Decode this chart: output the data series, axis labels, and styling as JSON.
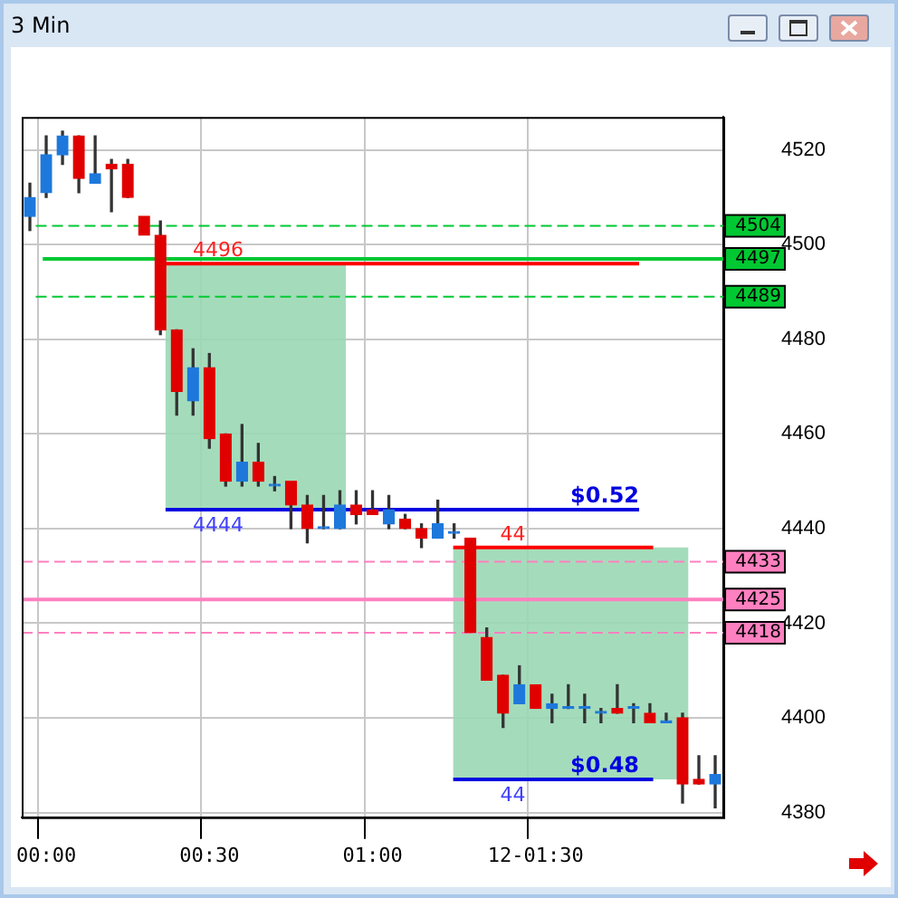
{
  "chart_data": {
    "type": "candlestick",
    "title": "3 Min",
    "categories": [
      null,
      "00:00",
      null,
      null,
      null,
      null,
      null,
      null,
      null,
      null,
      null,
      "00:30",
      null,
      null,
      null,
      null,
      null,
      null,
      null,
      null,
      null,
      "01:00",
      null,
      null,
      null,
      null,
      null,
      null,
      null,
      null,
      null,
      "12-01:30",
      null,
      null,
      null,
      null,
      null,
      null,
      null,
      null,
      null,
      null,
      null
    ],
    "ohlc": [
      [
        4506,
        4513,
        4503,
        4510
      ],
      [
        4511,
        4523,
        4510,
        4519
      ],
      [
        4519,
        4524,
        4517,
        4523
      ],
      [
        4523,
        4523,
        4511,
        4514
      ],
      [
        4513,
        4523,
        4513,
        4515
      ],
      [
        4517,
        4518,
        4507,
        4516
      ],
      [
        4517,
        4518,
        4510,
        4510
      ],
      [
        4506,
        4506,
        4502,
        4502
      ],
      [
        4502,
        4505,
        4481,
        4482
      ],
      [
        4482,
        4482,
        4464,
        4469
      ],
      [
        4467,
        4478,
        4464,
        4474
      ],
      [
        4474,
        4477,
        4457,
        4459
      ],
      [
        4460,
        4460,
        4449,
        4450
      ],
      [
        4450,
        4462,
        4449,
        4454
      ],
      [
        4454,
        4458,
        4449,
        4450
      ],
      [
        4449,
        4451,
        4448,
        4449
      ],
      [
        4450,
        4450,
        4440,
        4445
      ],
      [
        4445,
        4447,
        4437,
        4440
      ],
      [
        4440,
        4447,
        4440,
        4440
      ],
      [
        4440,
        4448,
        4440,
        4445
      ],
      [
        4445,
        4448,
        4441,
        4443
      ],
      [
        4444,
        4448,
        4443,
        4443
      ],
      [
        4441,
        4447,
        4440,
        4444
      ],
      [
        4442,
        4443,
        4440,
        4440
      ],
      [
        4440,
        4441,
        4436,
        4438
      ],
      [
        4438,
        4446,
        4438,
        4441
      ],
      [
        4439,
        4441,
        4438,
        4439
      ],
      [
        4438,
        4438,
        4418,
        4418
      ],
      [
        4417,
        4419,
        4408,
        4408
      ],
      [
        4409,
        4409,
        4398,
        4401
      ],
      [
        4403,
        4411,
        4403,
        4407
      ],
      [
        4407,
        4407,
        4402,
        4402
      ],
      [
        4402,
        4405,
        4399,
        4403
      ],
      [
        4402,
        4407,
        4402,
        4402
      ],
      [
        4402,
        4405,
        4399,
        4402
      ],
      [
        4401,
        4402,
        4399,
        4401
      ],
      [
        4402,
        4407,
        4401,
        4401
      ],
      [
        4402,
        4403,
        4399,
        4402
      ],
      [
        4401,
        4403,
        4399,
        4399
      ],
      [
        4399,
        4401,
        4399,
        4399
      ],
      [
        4400,
        4401,
        4382,
        4386
      ],
      [
        4387,
        4392,
        4386,
        4386
      ],
      [
        4386,
        4392,
        4381,
        4388
      ]
    ],
    "colors": [
      "#1e78dc",
      "#1e78dc",
      "#1e78dc",
      "#e00000",
      "#1e78dc",
      "#e00000",
      "#e00000",
      "#e00000",
      "#e00000",
      "#e00000",
      "#1e78dc",
      "#e00000",
      "#e00000",
      "#1e78dc",
      "#e00000",
      "#1e78dc",
      "#e00000",
      "#e00000",
      "#1e78dc",
      "#1e78dc",
      "#e00000",
      "#e00000",
      "#1e78dc",
      "#e00000",
      "#e00000",
      "#1e78dc",
      "#1e78dc",
      "#e00000",
      "#e00000",
      "#e00000",
      "#1e78dc",
      "#e00000",
      "#1e78dc",
      "#1e78dc",
      "#1e78dc",
      "#1e78dc",
      "#e00000",
      "#1e78dc",
      "#e00000",
      "#1e78dc",
      "#e00000",
      "#e00000",
      "#1e78dc"
    ],
    "ylim": [
      4379,
      4527
    ],
    "yticks": [
      4380,
      4400,
      4420,
      4440,
      4460,
      4480,
      4500,
      4520
    ],
    "grid": true,
    "ref_lines": [
      {
        "axis": "y",
        "value": 4504,
        "label": "4504",
        "color": "#00c832",
        "line_style": "dashed"
      },
      {
        "axis": "y",
        "value": 4497,
        "label": "4497",
        "color": "#00c832",
        "line_style": "solid"
      },
      {
        "axis": "y",
        "value": 4489,
        "label": "4489",
        "color": "#00c832",
        "line_style": "dashed"
      },
      {
        "axis": "y",
        "value": 4433,
        "label": "4433",
        "color": "#ff80c0",
        "line_style": "dashed"
      },
      {
        "axis": "y",
        "value": 4425,
        "label": "4425",
        "color": "#ff80c0",
        "line_style": "solid"
      },
      {
        "axis": "y",
        "value": 4418,
        "label": "4418",
        "color": "#ff80c0",
        "line_style": "dashed"
      },
      {
        "axis": "y",
        "value": 4496,
        "color": "#ff0000",
        "line_style": "solid"
      },
      {
        "axis": "y",
        "value": 4444,
        "color": "#0000e0",
        "line_style": "solid"
      },
      {
        "axis": "y",
        "value": 4436,
        "color": "#ff0000",
        "line_style": "solid"
      },
      {
        "axis": "y",
        "value": 4387,
        "color": "#0000e0",
        "line_style": "solid"
      }
    ],
    "bands": [
      {
        "axis": "y",
        "from": 4444,
        "to": 4496,
        "color": "#9ad8b4"
      },
      {
        "axis": "y",
        "from": 4387,
        "to": 4436,
        "color": "#9ad8b4"
      }
    ],
    "annotations": [
      {
        "text": "4496",
        "y": 4496
      },
      {
        "text": "$0.52",
        "y": 4444
      },
      {
        "text": "4444",
        "y": 4444
      },
      {
        "text": "44",
        "y": 4436
      },
      {
        "text": "$0.48",
        "y": 4387
      },
      {
        "text": "44",
        "y": 4387
      }
    ],
    "legend": false
  }
}
